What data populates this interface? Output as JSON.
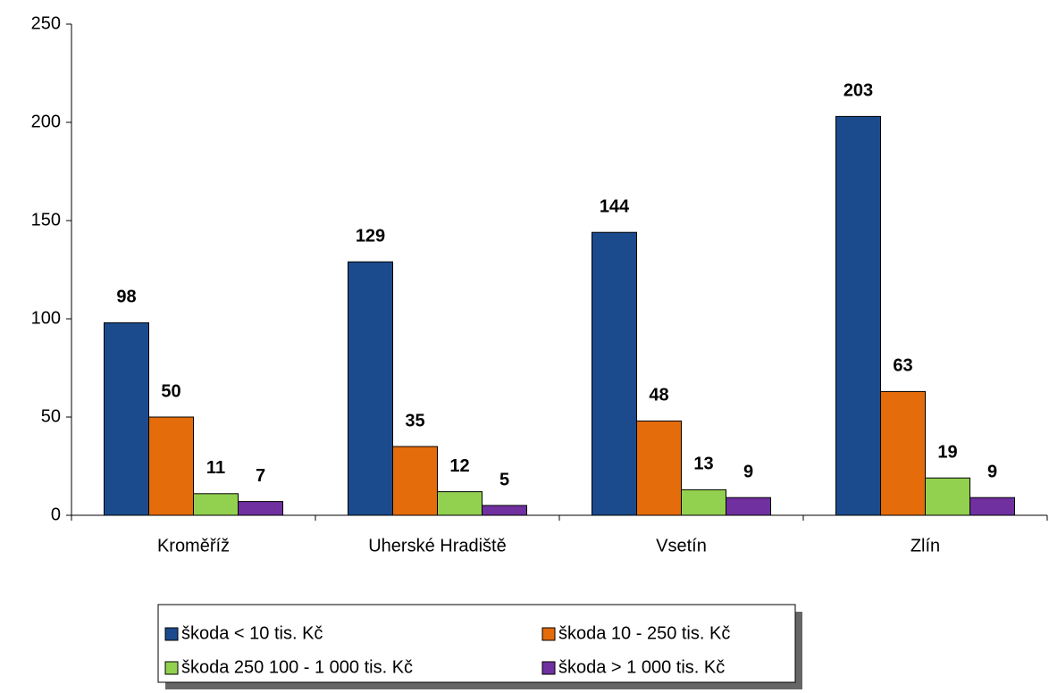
{
  "chart_data": {
    "type": "bar",
    "categories": [
      "Kroměříž",
      "Uherské Hradiště",
      "Vsetín",
      "Zlín"
    ],
    "series": [
      {
        "name": "škoda < 10 tis. Kč",
        "color": "#1b4b8c",
        "values": [
          98,
          129,
          144,
          203
        ]
      },
      {
        "name": "škoda 10 - 250 tis. Kč",
        "color": "#e46c0a",
        "values": [
          50,
          35,
          48,
          63
        ]
      },
      {
        "name": "škoda 250 100 - 1 000 tis. Kč",
        "color": "#92d050",
        "values": [
          11,
          12,
          13,
          19
        ]
      },
      {
        "name": "škoda > 1 000 tis. Kč",
        "color": "#7030a0",
        "values": [
          7,
          5,
          9,
          9
        ]
      }
    ],
    "ylim": [
      0,
      250
    ],
    "yticks": [
      0,
      50,
      100,
      150,
      200,
      250
    ],
    "legend": "bottom",
    "legend_columns": 2
  }
}
